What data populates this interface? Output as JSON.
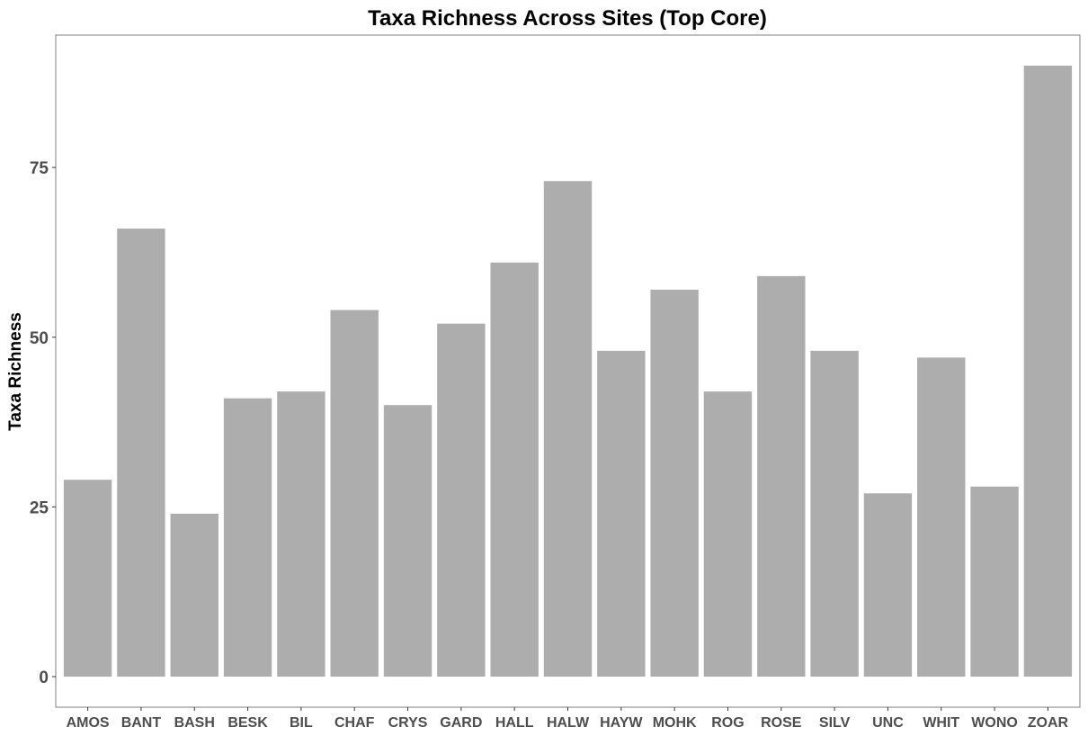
{
  "chart_data": {
    "type": "bar",
    "title": "Taxa Richness Across Sites (Top Core)",
    "xlabel": "",
    "ylabel": "Taxa Richness",
    "categories": [
      "AMOS",
      "BANT",
      "BASH",
      "BESK",
      "BIL",
      "CHAF",
      "CRYS",
      "GARD",
      "HALL",
      "HALW",
      "HAYW",
      "MOHK",
      "ROG",
      "ROSE",
      "SILV",
      "UNC",
      "WHIT",
      "WONO",
      "ZOAR"
    ],
    "values": [
      29,
      66,
      24,
      41,
      42,
      54,
      40,
      52,
      61,
      73,
      48,
      57,
      42,
      59,
      48,
      27,
      47,
      28,
      90
    ],
    "ylim": [
      -4.5,
      94.5
    ],
    "yticks": [
      0,
      25,
      50,
      75
    ],
    "grid": false,
    "legend": "none",
    "colors": {
      "bar": "#adadad",
      "panel_border": "#7f7f7f",
      "tick": "#333333",
      "tick_label": "#4d4d4d"
    }
  }
}
